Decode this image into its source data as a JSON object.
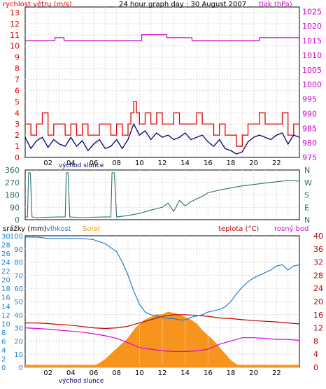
{
  "colors": {
    "wind": "#e00000",
    "wind_avg": "#00006e",
    "pressure": "#d000d0",
    "direction": "#2f6f6f",
    "humidity": "#1e7fd0",
    "solar": "#f7941d",
    "temp": "#c00000",
    "dew": "#e000e0",
    "frame": "#000000"
  },
  "chart_data": [
    {
      "type": "line",
      "title": "24 hour graph day : 30 August 2007",
      "left_axis_label": "rychlost větru (m/s)",
      "right_axis_label": "tlak (hPa)",
      "y_left_ticks": [
        "0",
        "1",
        "2",
        "3",
        "4",
        "5",
        "6",
        "7",
        "8",
        "9",
        "10",
        "11",
        "12",
        "13"
      ],
      "y_left_range": [
        0,
        13.5
      ],
      "y_right_ticks": [
        "975",
        "980",
        "985",
        "990",
        "995",
        "1000",
        "1005",
        "1010",
        "1015",
        "1020",
        "1025"
      ],
      "y_right_range": [
        975,
        1026.5
      ],
      "x_ticks": [
        "02",
        "04",
        "06",
        "08",
        "10",
        "12",
        "14",
        "16",
        "18",
        "20",
        "22"
      ],
      "x_subtitle": "východ slunce",
      "series": [
        {
          "name": "rychlost větru (m/s)",
          "key": "wind_gust",
          "x": [
            0,
            0.5,
            1,
            1.5,
            2,
            2.5,
            3,
            3.5,
            4,
            4.5,
            5,
            5.5,
            6,
            6.5,
            7,
            7.5,
            8,
            8.5,
            9,
            9.25,
            9.5,
            9.75,
            10,
            10.5,
            11,
            11.5,
            12,
            12.5,
            13,
            13.5,
            14,
            14.5,
            15,
            15.5,
            16,
            16.5,
            17,
            17.5,
            18,
            18.5,
            19,
            19.5,
            20,
            20.5,
            21,
            21.5,
            22,
            22.5,
            23,
            23.5,
            24
          ],
          "y": [
            3,
            2,
            3,
            4,
            2,
            3,
            3,
            2,
            3,
            2,
            3,
            2,
            2,
            3,
            3,
            2,
            3,
            2,
            3,
            4,
            5,
            4,
            3,
            4,
            3,
            4,
            3,
            3,
            4,
            3,
            3,
            3,
            4,
            3,
            3,
            2,
            3,
            2,
            2,
            1,
            2,
            3,
            3,
            4,
            3,
            3,
            3,
            4,
            2,
            3,
            3
          ]
        },
        {
          "key": "wind_avg",
          "x": [
            0,
            0.5,
            1,
            1.5,
            2,
            2.5,
            3,
            3.5,
            4,
            4.5,
            5,
            5.5,
            6,
            6.5,
            7,
            7.5,
            8,
            8.5,
            9,
            9.5,
            10,
            10.5,
            11,
            11.5,
            12,
            12.5,
            13,
            13.5,
            14,
            14.5,
            15,
            15.5,
            16,
            16.5,
            17,
            17.5,
            18,
            18.5,
            19,
            19.5,
            20,
            20.5,
            21,
            21.5,
            22,
            22.5,
            23,
            23.5,
            24
          ],
          "y": [
            1.8,
            0.8,
            1.5,
            1.8,
            0.9,
            1.6,
            1.2,
            1.0,
            1.8,
            1.0,
            1.5,
            0.6,
            1.2,
            1.6,
            0.8,
            1.0,
            1.6,
            0.8,
            1.6,
            3.0,
            2.0,
            2.4,
            1.6,
            2.2,
            1.8,
            2.0,
            1.6,
            1.8,
            2.2,
            1.6,
            1.8,
            2.0,
            1.4,
            1.0,
            1.6,
            0.8,
            0.6,
            0.3,
            0.5,
            1.4,
            1.8,
            2.0,
            1.8,
            1.6,
            2.0,
            2.2,
            1.2,
            2.0,
            1.8
          ]
        },
        {
          "name": "tlak (hPa)",
          "key": "pressure",
          "x": [
            0,
            2.5,
            2.6,
            3.3,
            3.4,
            10,
            10.2,
            12.2,
            12.4,
            14.5,
            14.6,
            20.4,
            20.5,
            21.4,
            21.5,
            24
          ],
          "y": [
            1015,
            1015,
            1016,
            1016,
            1015,
            1015,
            1017,
            1017,
            1016,
            1016,
            1015,
            1015,
            1016,
            1016,
            1016,
            1016
          ]
        }
      ]
    },
    {
      "type": "line",
      "y_left_ticks": [
        "360",
        "270",
        "180",
        "90",
        "0"
      ],
      "y_range": [
        0,
        360
      ],
      "y_right_ticks": [
        "N",
        "W",
        "S",
        "E",
        "N"
      ],
      "series": [
        {
          "key": "direction",
          "x": [
            0,
            0.2,
            0.3,
            0.45,
            0.6,
            1,
            2,
            3,
            3.5,
            3.6,
            3.75,
            3.9,
            5,
            6,
            7,
            7.5,
            7.6,
            7.8,
            8,
            8.5,
            9,
            10,
            11,
            12,
            12.5,
            13,
            13.5,
            14,
            14.5,
            15,
            15.5,
            16,
            16.5,
            17,
            18,
            19,
            20,
            21,
            22,
            23,
            24
          ],
          "y": [
            20,
            20,
            340,
            340,
            20,
            15,
            18,
            20,
            20,
            340,
            340,
            20,
            15,
            18,
            20,
            20,
            340,
            340,
            20,
            25,
            30,
            45,
            70,
            90,
            120,
            60,
            140,
            100,
            130,
            150,
            170,
            195,
            205,
            215,
            230,
            245,
            255,
            265,
            275,
            285,
            280
          ]
        }
      ]
    },
    {
      "type": "line",
      "left_axis_labels": [
        "srážky (mm)",
        "vlhkost",
        "Solar"
      ],
      "right_axis_labels": [
        "teplota (°C)",
        "rosný bod"
      ],
      "y_left_ticks_outer": [
        "0",
        "2",
        "4",
        "6",
        "8",
        "10",
        "12",
        "14",
        "16",
        "18",
        "20",
        "22",
        "24",
        "26",
        "28",
        "30"
      ],
      "y_left_ticks_inner": [
        "0",
        "10",
        "20",
        "30",
        "40",
        "50",
        "60",
        "70",
        "80",
        "90",
        "100"
      ],
      "y_right_ticks": [
        "0",
        "4",
        "8",
        "12",
        "16",
        "20",
        "24",
        "28",
        "32",
        "36",
        "40"
      ],
      "y_right_range": [
        0,
        40
      ],
      "x_ticks": [
        "02",
        "04",
        "06",
        "08",
        "10",
        "12",
        "14",
        "16",
        "18",
        "20",
        "22"
      ],
      "x_subtitle": "východ slunce",
      "series": [
        {
          "name": "vlhkost",
          "key": "humidity",
          "x": [
            0,
            1,
            2,
            3,
            4,
            5,
            6,
            7,
            8,
            8.5,
            9,
            9.5,
            10,
            10.5,
            11,
            11.5,
            12,
            12.5,
            13,
            13.5,
            14,
            14.5,
            15,
            15.5,
            16,
            16.5,
            17,
            17.5,
            18,
            18.5,
            19,
            19.5,
            20,
            20.5,
            21,
            21.5,
            22,
            22.5,
            23,
            23.5,
            24
          ],
          "y": [
            99,
            99,
            98,
            98,
            98,
            98,
            97,
            94,
            88,
            80,
            70,
            58,
            48,
            42,
            40,
            39,
            38,
            37,
            37,
            36,
            36,
            38,
            39,
            40,
            42,
            43,
            44,
            46,
            50,
            56,
            61,
            65,
            68,
            70,
            72,
            74,
            77,
            78,
            74,
            77,
            78
          ]
        },
        {
          "name": "Solar",
          "key": "solar",
          "x": [
            0,
            5.5,
            6,
            6.5,
            7,
            7.5,
            8,
            8.5,
            9,
            9.5,
            10,
            10.5,
            11,
            11.5,
            12,
            12.5,
            13,
            13.5,
            14,
            14.5,
            15,
            15.5,
            16,
            16.5,
            17,
            17.5,
            18,
            18.5,
            19,
            24
          ],
          "y": [
            0,
            0,
            1,
            3,
            6,
            10,
            14,
            18,
            22,
            28,
            33,
            36,
            38,
            40,
            40,
            42,
            41,
            40,
            38,
            36,
            33,
            28,
            24,
            20,
            15,
            10,
            5,
            2,
            0,
            0
          ]
        },
        {
          "name": "teplota (°C)",
          "key": "temp",
          "x": [
            0,
            1,
            2,
            3,
            4,
            5,
            6,
            7,
            8,
            9,
            10,
            11,
            12,
            13,
            14,
            15,
            16,
            17,
            18,
            19,
            20,
            21,
            22,
            23,
            24
          ],
          "y": [
            13.5,
            13.5,
            13.3,
            13,
            12.8,
            12.4,
            12,
            11.8,
            12,
            12.5,
            13.5,
            14.5,
            15.5,
            16,
            16,
            15.8,
            15.5,
            15,
            14.8,
            14.5,
            14.2,
            14,
            13.8,
            13.5,
            13.2
          ]
        },
        {
          "name": "rosný bod",
          "key": "dew",
          "x": [
            0,
            1,
            2,
            3,
            4,
            5,
            6,
            7,
            8,
            9,
            10,
            11,
            12,
            13,
            14,
            15,
            16,
            17,
            18,
            19,
            20,
            21,
            22,
            23,
            24
          ],
          "y": [
            12,
            11.8,
            11.6,
            11.3,
            11,
            10.7,
            10.2,
            9.6,
            8.8,
            7.5,
            6,
            5.5,
            5,
            4.8,
            4.8,
            5,
            5.5,
            7,
            8,
            9,
            9,
            8.8,
            8.5,
            8.5,
            8.2
          ]
        }
      ]
    }
  ]
}
